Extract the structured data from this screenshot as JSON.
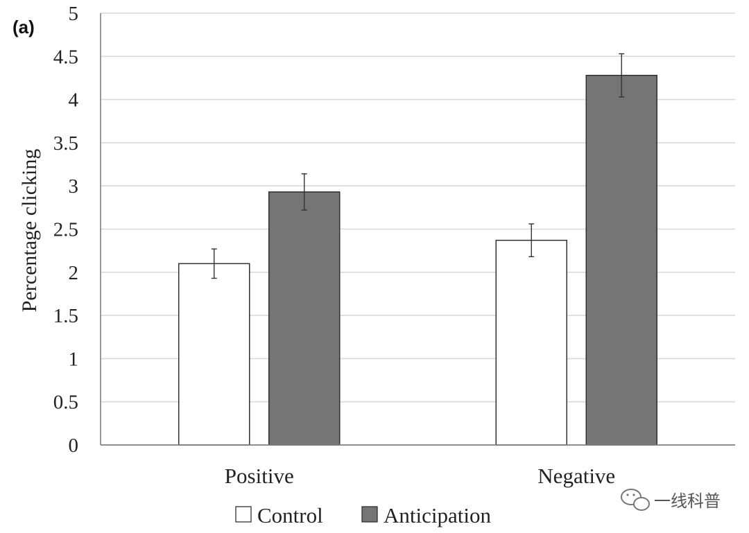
{
  "panel_label": "(a)",
  "watermark": {
    "text": "一线科普",
    "icon": "wechat-icon"
  },
  "chart_data": {
    "type": "bar",
    "title": "",
    "xlabel": "",
    "ylabel": "Percentage clicking",
    "ylim": [
      0,
      5
    ],
    "yticks": [
      0,
      0.5,
      1,
      1.5,
      2,
      2.5,
      3,
      3.5,
      4,
      4.5,
      5
    ],
    "ytick_labels": [
      "0",
      "0.5",
      "1",
      "1.5",
      "2",
      "2.5",
      "3",
      "3.5",
      "4",
      "4.5",
      "5"
    ],
    "grid": true,
    "legend_position": "bottom",
    "categories": [
      "Positive",
      "Negative"
    ],
    "series": [
      {
        "name": "Control",
        "color": "#ffffff",
        "values": [
          2.1,
          2.37
        ],
        "error": [
          0.17,
          0.19
        ]
      },
      {
        "name": "Anticipation",
        "color": "#757575",
        "values": [
          2.93,
          4.28
        ],
        "error": [
          0.21,
          0.25
        ]
      }
    ]
  }
}
